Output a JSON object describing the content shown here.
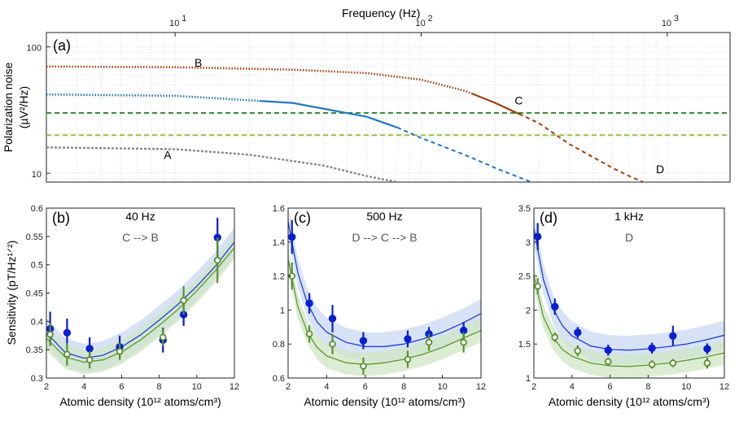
{
  "chart_data": [
    {
      "panel": "(a)",
      "type": "line",
      "xlabel": "Frequency (Hz)",
      "ylabel": [
        "Polarization noise",
        "(µV²/Hz)"
      ],
      "xscale": "log",
      "yscale": "log",
      "xlim": [
        3,
        1800
      ],
      "ylim": [
        8.5,
        130
      ],
      "xticks": [
        "10",
        "10",
        "10"
      ],
      "xtick_exponents": [
        "1",
        "2",
        "3"
      ],
      "yticks": [
        "100",
        "10"
      ],
      "grid": true,
      "series": [
        {
          "color": "#2a8b2a",
          "style": "dashed",
          "x": [
            3,
            1800
          ],
          "y": [
            30,
            30
          ]
        },
        {
          "color": "#8dc63f",
          "style": "dashed",
          "x": [
            3,
            1800
          ],
          "y": [
            20,
            20
          ]
        },
        {
          "color": "#a0400f",
          "style": "dotted-then-dashed",
          "corner_hz": 200,
          "x": [
            3,
            10,
            30,
            60,
            100,
            150,
            200,
            300,
            400,
            600,
            700,
            800
          ],
          "y": [
            70,
            69,
            66,
            62,
            55,
            45,
            36,
            25,
            17,
            11,
            9.5,
            8.5
          ]
        },
        {
          "color": "#1f77c4",
          "style": "dotted-solid-dashed",
          "x": [
            3,
            10,
            30,
            60,
            80,
            100,
            150,
            200,
            280
          ],
          "y": [
            42,
            41,
            36,
            28,
            23,
            19,
            14,
            11,
            8.5
          ]
        },
        {
          "color": "#8a8a8a",
          "style": "dashdot",
          "x": [
            3,
            10,
            20,
            40,
            60,
            80
          ],
          "y": [
            16,
            15.5,
            14,
            11.5,
            9.5,
            8.5
          ]
        }
      ],
      "annotations": [
        {
          "text": "B",
          "x": 12,
          "y": 70
        },
        {
          "text": "C",
          "x": 240,
          "y": 35
        },
        {
          "text": "A",
          "x": 9,
          "y": 13
        },
        {
          "text": "D",
          "x": 900,
          "y": 10
        }
      ]
    },
    {
      "panel": "(b)",
      "type": "scatter",
      "title": "40 Hz",
      "subtitle": "C --> B",
      "xlabel": "Atomic density (10¹² atoms/cm³)",
      "ylabel": "Sensitivity (pT/Hz¹ᐟ²)",
      "xlim": [
        2,
        12
      ],
      "ylim": [
        0.3,
        0.6
      ],
      "xticks": [
        "2",
        "4",
        "6",
        "8",
        "10",
        "12"
      ],
      "yticks": [
        "0.3",
        "0.35",
        "0.4",
        "0.45",
        "0.5",
        "0.55",
        "0.6"
      ],
      "series": [
        {
          "color": "#0a1fd4",
          "x": [
            2.2,
            3.1,
            4.3,
            5.9,
            8.2,
            9.3,
            11.1
          ],
          "y": [
            0.387,
            0.38,
            0.352,
            0.355,
            0.367,
            0.412,
            0.548
          ],
          "err": [
            0.03,
            0.025,
            0.02,
            0.02,
            0.022,
            0.02,
            0.035
          ]
        },
        {
          "color": "#5a8f2f",
          "hollow": true,
          "x": [
            2.2,
            3.1,
            4.3,
            5.9,
            8.2,
            9.3,
            11.1
          ],
          "y": [
            0.377,
            0.342,
            0.332,
            0.347,
            0.372,
            0.437,
            0.508
          ],
          "err": [
            0.02,
            0.02,
            0.015,
            0.015,
            0.015,
            0.025,
            0.04
          ]
        }
      ],
      "fits": [
        {
          "color": "#1f3fd8",
          "x": [
            2,
            3,
            4,
            5,
            6,
            7,
            8,
            9,
            10,
            11,
            12
          ],
          "y": [
            0.38,
            0.345,
            0.335,
            0.34,
            0.355,
            0.376,
            0.402,
            0.43,
            0.462,
            0.498,
            0.54
          ]
        },
        {
          "color": "#5a9a30",
          "x": [
            2,
            3,
            4,
            5,
            6,
            7,
            8,
            9,
            10,
            11,
            12
          ],
          "y": [
            0.37,
            0.337,
            0.328,
            0.332,
            0.346,
            0.367,
            0.393,
            0.421,
            0.454,
            0.49,
            0.53
          ]
        }
      ]
    },
    {
      "panel": "(c)",
      "type": "scatter",
      "title": "500 Hz",
      "subtitle": "D --> C --> B",
      "xlabel": "Atomic density (10¹² atoms/cm³)",
      "xlim": [
        2,
        12
      ],
      "ylim": [
        0.6,
        1.6
      ],
      "xticks": [
        "2",
        "4",
        "6",
        "8",
        "10",
        "12"
      ],
      "yticks": [
        "0.6",
        "0.8",
        "1",
        "1.2",
        "1.4",
        "1.6"
      ],
      "series": [
        {
          "color": "#0a1fd4",
          "x": [
            2.2,
            3.1,
            4.3,
            5.9,
            8.2,
            9.3,
            11.1
          ],
          "y": [
            1.43,
            1.04,
            0.95,
            0.82,
            0.83,
            0.86,
            0.88
          ],
          "err": [
            0.1,
            0.06,
            0.08,
            0.05,
            0.05,
            0.04,
            0.05
          ]
        },
        {
          "color": "#5a8f2f",
          "hollow": true,
          "x": [
            2.2,
            3.1,
            4.3,
            5.9,
            8.2,
            9.3,
            11.1
          ],
          "y": [
            1.2,
            0.86,
            0.8,
            0.67,
            0.71,
            0.81,
            0.81
          ],
          "err": [
            0.08,
            0.05,
            0.06,
            0.05,
            0.05,
            0.05,
            0.06
          ]
        }
      ],
      "fits": [
        {
          "color": "#1f3fd8",
          "x": [
            2,
            2.5,
            3,
            3.5,
            4,
            5,
            6,
            7,
            8,
            9,
            10,
            11,
            12
          ],
          "y": [
            1.52,
            1.22,
            1.04,
            0.93,
            0.87,
            0.81,
            0.785,
            0.785,
            0.8,
            0.83,
            0.87,
            0.92,
            0.98
          ]
        },
        {
          "color": "#5a9a30",
          "x": [
            2,
            2.5,
            3,
            3.5,
            4,
            5,
            6,
            7,
            8,
            9,
            10,
            11,
            12
          ],
          "y": [
            1.3,
            1.02,
            0.87,
            0.78,
            0.73,
            0.69,
            0.68,
            0.69,
            0.71,
            0.74,
            0.78,
            0.83,
            0.88
          ]
        }
      ]
    },
    {
      "panel": "(d)",
      "type": "scatter",
      "title": "1 kHz",
      "subtitle": "D",
      "xlabel": "Atomic density (10¹² atoms/cm³)",
      "xlim": [
        2,
        12
      ],
      "ylim": [
        1,
        3.5
      ],
      "xticks": [
        "2",
        "4",
        "6",
        "8",
        "10",
        "12"
      ],
      "yticks": [
        "1",
        "1.5",
        "2",
        "2.5",
        "3",
        "3.5"
      ],
      "series": [
        {
          "color": "#0a1fd4",
          "x": [
            2.2,
            3.1,
            4.3,
            5.9,
            8.2,
            9.3,
            11.1
          ],
          "y": [
            3.08,
            2.05,
            1.67,
            1.41,
            1.44,
            1.62,
            1.43
          ],
          "err": [
            0.2,
            0.12,
            0.08,
            0.08,
            0.08,
            0.15,
            0.08
          ]
        },
        {
          "color": "#5a8f2f",
          "hollow": true,
          "x": [
            2.2,
            3.1,
            4.3,
            5.9,
            8.2,
            9.3,
            11.1
          ],
          "y": [
            2.35,
            1.6,
            1.4,
            1.24,
            1.2,
            1.22,
            1.22
          ],
          "err": [
            0.12,
            0.07,
            0.08,
            0.06,
            0.06,
            0.06,
            0.08
          ]
        }
      ],
      "fits": [
        {
          "color": "#1f3fd8",
          "x": [
            2,
            2.5,
            3,
            3.5,
            4,
            5,
            6,
            7,
            8,
            9,
            10,
            11,
            12
          ],
          "y": [
            3.2,
            2.45,
            2.02,
            1.77,
            1.62,
            1.47,
            1.42,
            1.41,
            1.43,
            1.46,
            1.5,
            1.56,
            1.63
          ]
        },
        {
          "color": "#5a9a30",
          "x": [
            2,
            2.5,
            3,
            3.5,
            4,
            5,
            6,
            7,
            8,
            9,
            10,
            11,
            12
          ],
          "y": [
            2.5,
            1.9,
            1.6,
            1.42,
            1.32,
            1.22,
            1.18,
            1.17,
            1.19,
            1.22,
            1.26,
            1.31,
            1.37
          ]
        }
      ]
    }
  ]
}
